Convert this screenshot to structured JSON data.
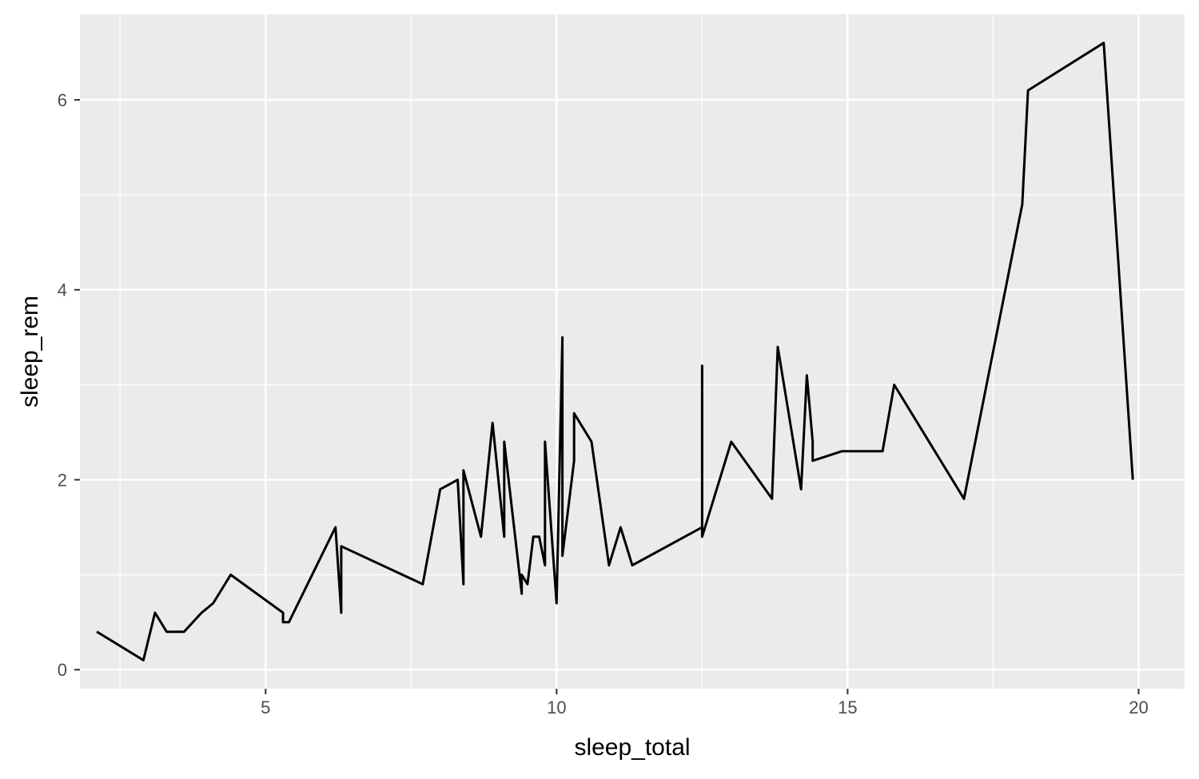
{
  "chart_data": {
    "type": "line",
    "title": "",
    "xlabel": "sleep_total",
    "ylabel": "sleep_rem",
    "xlim": [
      1.81,
      20.79
    ],
    "ylim": [
      -0.2,
      6.9
    ],
    "x_ticks": [
      5,
      10,
      15,
      20
    ],
    "x_minor_ticks": [
      2.5,
      7.5,
      12.5,
      17.5
    ],
    "y_ticks": [
      0,
      2,
      4,
      6
    ],
    "y_minor_ticks": [
      1,
      3,
      5
    ],
    "grid": true,
    "colors": {
      "panel_background": "#ebebeb",
      "grid": "#ffffff",
      "line": "#000000",
      "tick_text": "#4d4d4d",
      "axis_title": "#000000"
    },
    "series": [
      {
        "x": [
          2.1,
          2.9,
          3.1,
          3.3,
          3.6,
          3.9,
          4.1,
          4.4,
          5.3,
          5.3,
          5.4,
          6.2,
          6.3,
          6.3,
          7.7,
          8.0,
          8.3,
          8.4,
          8.4,
          8.7,
          8.9,
          9.1,
          9.1,
          9.4,
          9.4,
          9.5,
          9.6,
          9.7,
          9.8,
          9.8,
          10.0,
          10.1,
          10.1,
          10.1,
          10.3,
          10.3,
          10.6,
          10.9,
          11.1,
          11.3,
          12.5,
          12.5,
          12.5,
          13.0,
          13.7,
          13.8,
          14.2,
          14.3,
          14.4,
          14.4,
          14.9,
          15.6,
          15.8,
          17.0,
          18.0,
          18.1,
          19.4,
          19.9
        ],
        "y": [
          0.4,
          0.1,
          0.6,
          0.4,
          0.4,
          0.6,
          0.7,
          1.0,
          0.6,
          0.5,
          0.5,
          1.5,
          0.6,
          1.3,
          0.9,
          1.9,
          2.0,
          0.9,
          2.1,
          1.4,
          2.6,
          1.4,
          2.4,
          0.8,
          1.0,
          0.9,
          1.4,
          1.4,
          1.1,
          2.4,
          0.7,
          3.5,
          2.9,
          1.2,
          2.2,
          2.7,
          2.4,
          1.1,
          1.5,
          1.1,
          1.5,
          3.2,
          1.4,
          2.4,
          1.8,
          3.4,
          1.9,
          3.1,
          2.4,
          2.2,
          2.3,
          2.3,
          3.0,
          1.8,
          4.9,
          6.1,
          6.6,
          2.0
        ]
      }
    ]
  }
}
